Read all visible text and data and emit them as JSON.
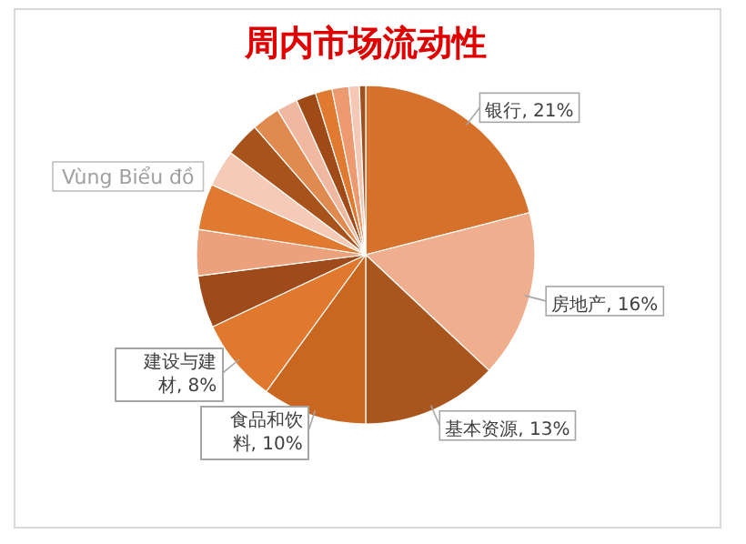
{
  "chart_data": {
    "type": "pie",
    "title": "周内市场流动性",
    "categories": [
      "银行",
      "房地产",
      "基本资源",
      "食品和饮料",
      "建设与建材",
      null,
      null,
      null,
      null,
      null,
      null,
      null,
      null,
      null,
      null,
      null,
      null
    ],
    "value_labels": [
      "21%",
      "16%",
      "13%",
      "10%",
      "8%",
      null,
      null,
      null,
      null,
      null,
      null,
      null,
      null,
      null,
      null,
      null,
      null
    ],
    "values": [
      21,
      16,
      13,
      10,
      8,
      5,
      4.4,
      4.4,
      3.5,
      3.3,
      2.7,
      2,
      1.9,
      1.6,
      1.6,
      1,
      0.6
    ],
    "colors": [
      "#d5712a",
      "#efae8e",
      "#a9561e",
      "#c9661f",
      "#e0782e",
      "#9e4a1a",
      "#eba17c",
      "#e07a30",
      "#f5cbb8",
      "#a8521c",
      "#e08a50",
      "#f0b8a0",
      "#a04a18",
      "#e07a30",
      "#ee9a70",
      "#f5c8b5",
      "#a0501c"
    ],
    "annotations": [
      "Vùng Biểu đồ"
    ]
  }
}
